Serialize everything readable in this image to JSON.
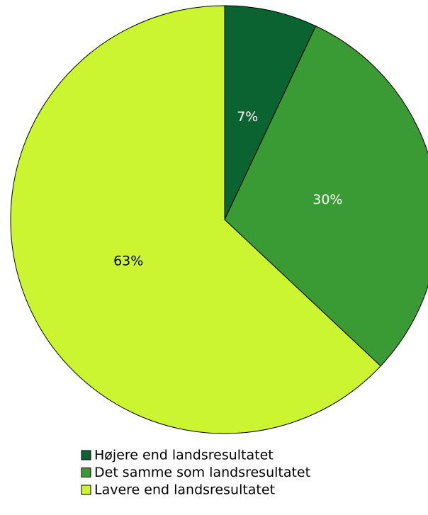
{
  "chart_data": {
    "type": "pie",
    "categories": [
      "Højere end landsresultatet",
      "Det samme som landsresultatet",
      "Lavere end landsresultatet"
    ],
    "values": [
      7,
      30,
      63
    ],
    "value_labels": [
      "7%",
      "30%",
      "63%"
    ],
    "colors": [
      "#0b6331",
      "#3a9b34",
      "#ccf531"
    ],
    "legend": "bottom"
  }
}
